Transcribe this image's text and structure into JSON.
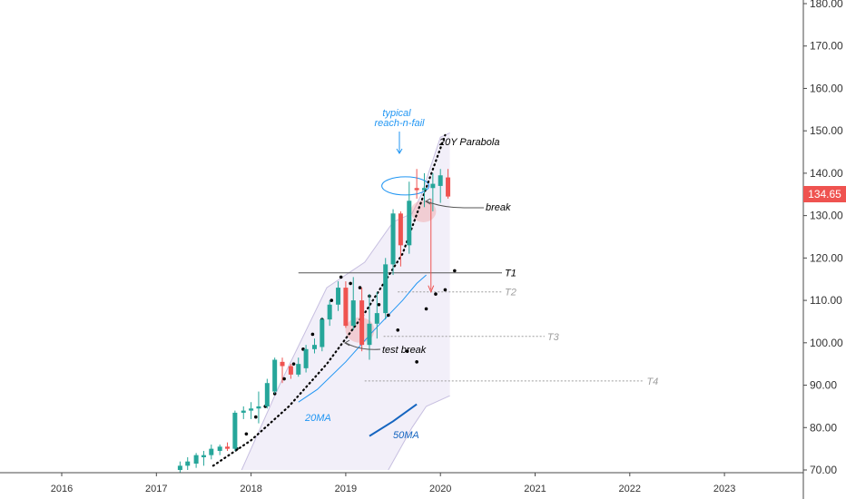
{
  "chart_data": {
    "type": "candlestick",
    "title": "",
    "xlabel": "",
    "ylabel": "",
    "ylim": [
      70,
      183
    ],
    "y_ticks": [
      "70.00",
      "80.00",
      "90.00",
      "100.00",
      "110.00",
      "120.00",
      "130.00",
      "140.00",
      "150.00",
      "160.00",
      "170.00",
      "180.00"
    ],
    "x_ticks": [
      "2016",
      "2017",
      "2018",
      "2019",
      "2020",
      "2021",
      "2022",
      "2023"
    ],
    "x_tick_values": [
      2016,
      2017,
      2018,
      2019,
      2020,
      2021,
      2022,
      2023
    ],
    "last_price": "134.65",
    "colors": {
      "up": "#26a69a",
      "down": "#ef5350",
      "ma20": "#2196f3",
      "ma50": "#1565c0",
      "parabola": "#000000",
      "band_fill": "#ede9f7",
      "band_line": "#c7bfe0"
    },
    "candles": [
      {
        "t": 2017.25,
        "o": 70.0,
        "h": 72.0,
        "l": 69.0,
        "c": 71.0
      },
      {
        "t": 2017.33,
        "o": 71.0,
        "h": 73.0,
        "l": 70.0,
        "c": 72.0
      },
      {
        "t": 2017.42,
        "o": 71.5,
        "h": 74.0,
        "l": 70.5,
        "c": 73.5
      },
      {
        "t": 2017.5,
        "o": 73.0,
        "h": 74.5,
        "l": 71.0,
        "c": 73.5
      },
      {
        "t": 2017.58,
        "o": 73.5,
        "h": 76.0,
        "l": 72.5,
        "c": 75.0
      },
      {
        "t": 2017.67,
        "o": 74.5,
        "h": 76.0,
        "l": 73.5,
        "c": 75.5
      },
      {
        "t": 2017.75,
        "o": 75.5,
        "h": 76.5,
        "l": 74.5,
        "c": 75.0
      },
      {
        "t": 2017.83,
        "o": 75.0,
        "h": 84.0,
        "l": 74.5,
        "c": 83.5
      },
      {
        "t": 2017.92,
        "o": 83.5,
        "h": 85.0,
        "l": 82.0,
        "c": 84.0
      },
      {
        "t": 2018.0,
        "o": 84.0,
        "h": 86.0,
        "l": 82.0,
        "c": 84.5
      },
      {
        "t": 2018.08,
        "o": 84.5,
        "h": 88.5,
        "l": 81.0,
        "c": 85.0
      },
      {
        "t": 2018.17,
        "o": 85.0,
        "h": 91.5,
        "l": 84.5,
        "c": 90.5
      },
      {
        "t": 2018.25,
        "o": 88.5,
        "h": 96.5,
        "l": 88.0,
        "c": 96.0
      },
      {
        "t": 2018.33,
        "o": 95.5,
        "h": 96.5,
        "l": 90.5,
        "c": 94.5
      },
      {
        "t": 2018.42,
        "o": 94.5,
        "h": 95.0,
        "l": 91.5,
        "c": 92.5
      },
      {
        "t": 2018.5,
        "o": 92.5,
        "h": 96.5,
        "l": 92.0,
        "c": 95.0
      },
      {
        "t": 2018.58,
        "o": 94.0,
        "h": 99.5,
        "l": 93.0,
        "c": 98.5
      },
      {
        "t": 2018.67,
        "o": 98.5,
        "h": 101.0,
        "l": 97.5,
        "c": 99.5
      },
      {
        "t": 2018.75,
        "o": 99.0,
        "h": 106.0,
        "l": 98.0,
        "c": 105.5
      },
      {
        "t": 2018.83,
        "o": 105.5,
        "h": 110.0,
        "l": 104.0,
        "c": 109.0
      },
      {
        "t": 2018.92,
        "o": 109.0,
        "h": 114.5,
        "l": 107.5,
        "c": 113.0
      },
      {
        "t": 2019.0,
        "o": 113.0,
        "h": 114.5,
        "l": 103.5,
        "c": 104.0
      },
      {
        "t": 2019.08,
        "o": 104.0,
        "h": 115.5,
        "l": 103.0,
        "c": 110.0
      },
      {
        "t": 2019.17,
        "o": 110.0,
        "h": 113.0,
        "l": 98.0,
        "c": 99.5
      },
      {
        "t": 2019.25,
        "o": 99.5,
        "h": 111.5,
        "l": 96.0,
        "c": 104.5
      },
      {
        "t": 2019.33,
        "o": 104.5,
        "h": 112.0,
        "l": 101.0,
        "c": 107.0
      },
      {
        "t": 2019.42,
        "o": 107.0,
        "h": 120.0,
        "l": 105.5,
        "c": 118.5
      },
      {
        "t": 2019.5,
        "o": 118.5,
        "h": 131.5,
        "l": 116.0,
        "c": 130.5
      },
      {
        "t": 2019.58,
        "o": 130.5,
        "h": 131.0,
        "l": 118.0,
        "c": 123.0
      },
      {
        "t": 2019.67,
        "o": 123.0,
        "h": 138.0,
        "l": 121.0,
        "c": 133.5
      },
      {
        "t": 2019.75,
        "o": 136.5,
        "h": 141.0,
        "l": 134.0,
        "c": 136.0
      },
      {
        "t": 2019.83,
        "o": 136.0,
        "h": 140.0,
        "l": 132.0,
        "c": 136.5
      },
      {
        "t": 2019.92,
        "o": 136.5,
        "h": 140.0,
        "l": 131.0,
        "c": 137.5
      },
      {
        "t": 2020.0,
        "o": 137.0,
        "h": 141.0,
        "l": 133.0,
        "c": 139.5
      },
      {
        "t": 2020.08,
        "o": 139.0,
        "h": 141.0,
        "l": 134.0,
        "c": 134.5
      }
    ],
    "ma20": [
      [
        2018.5,
        86.0
      ],
      [
        2018.7,
        89.0
      ],
      [
        2019.0,
        95.5
      ],
      [
        2019.3,
        103.0
      ],
      [
        2019.6,
        110.0
      ],
      [
        2019.75,
        114.0
      ],
      [
        2019.85,
        116.0
      ]
    ],
    "ma50": [
      [
        2019.25,
        78.0
      ],
      [
        2019.5,
        81.5
      ],
      [
        2019.75,
        85.5
      ]
    ],
    "parabola_dotted": [
      [
        2017.6,
        71.0
      ],
      [
        2018.0,
        77.0
      ],
      [
        2018.4,
        85.0
      ],
      [
        2018.8,
        95.0
      ],
      [
        2019.2,
        107.0
      ],
      [
        2019.6,
        121.0
      ],
      [
        2020.05,
        149.0
      ]
    ],
    "dots_pattern": [
      [
        2017.85,
        75.0
      ],
      [
        2017.95,
        78.5
      ],
      [
        2018.05,
        82.5
      ],
      [
        2018.15,
        85.0
      ],
      [
        2018.25,
        88.0
      ],
      [
        2018.35,
        91.5
      ],
      [
        2018.45,
        95.0
      ],
      [
        2018.55,
        98.5
      ],
      [
        2018.65,
        102.0
      ],
      [
        2018.75,
        105.5
      ],
      [
        2018.85,
        110.0
      ],
      [
        2018.95,
        115.5
      ],
      [
        2019.05,
        114.0
      ],
      [
        2019.15,
        113.0
      ],
      [
        2019.25,
        111.0
      ],
      [
        2019.35,
        109.0
      ],
      [
        2019.45,
        106.5
      ],
      [
        2019.55,
        103.0
      ],
      [
        2019.65,
        98.0
      ],
      [
        2019.75,
        95.5
      ],
      [
        2019.85,
        108.0
      ],
      [
        2019.95,
        111.5
      ],
      [
        2020.05,
        112.5
      ],
      [
        2020.15,
        117.0
      ]
    ],
    "band_upper": [
      [
        2017.9,
        70.0
      ],
      [
        2018.3,
        90.0
      ],
      [
        2018.8,
        113.0
      ],
      [
        2019.2,
        119.0
      ],
      [
        2019.5,
        128.5
      ],
      [
        2019.7,
        130.5
      ],
      [
        2019.8,
        135.0
      ],
      [
        2020.0,
        148.5
      ],
      [
        2020.1,
        149.5
      ]
    ],
    "band_lower": [
      [
        2019.45,
        70.0
      ],
      [
        2019.7,
        80.0
      ],
      [
        2019.85,
        85.0
      ],
      [
        2020.1,
        87.5
      ]
    ],
    "horizontal_levels": [
      {
        "label": "T1",
        "y": 116.5,
        "x_start": 2018.5,
        "x_end": 2020.65,
        "style": "solid"
      },
      {
        "label": "T2",
        "y": 112.0,
        "x_start": 2019.55,
        "x_end": 2020.65,
        "style": "dotted"
      },
      {
        "label": "T3",
        "y": 101.5,
        "x_start": 2019.4,
        "x_end": 2021.1,
        "style": "dotted"
      },
      {
        "label": "T4",
        "y": 91.0,
        "x_start": 2019.2,
        "x_end": 2022.15,
        "style": "dotted"
      }
    ],
    "annotations": {
      "typical": "typical",
      "reach_n_fail": "reach-n-fail",
      "parabola": "20Y Parabola",
      "break": "break",
      "test_break": "test break",
      "ma20_label": "20MA",
      "ma50_label": "50MA"
    }
  }
}
